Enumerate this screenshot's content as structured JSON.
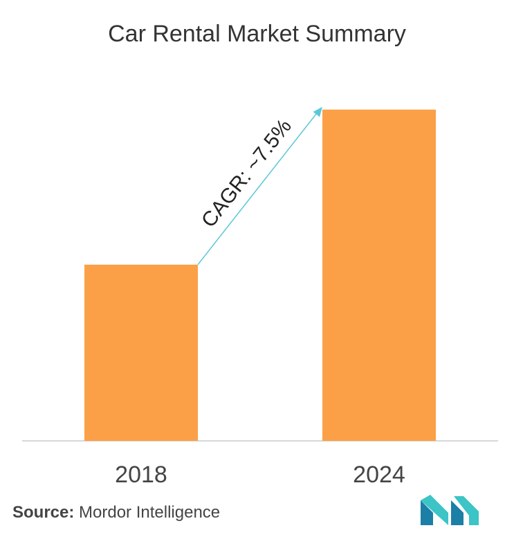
{
  "chart_data": {
    "type": "bar",
    "title": "Car Rental Market Summary",
    "categories": [
      "2018",
      "2024"
    ],
    "values": [
      1.0,
      1.88
    ],
    "annotation": "CAGR: ~7.5%",
    "ylim": [
      0,
      2.0
    ],
    "grid": false,
    "bar_color": "#FBA047",
    "arrow_color": "#5BC8D6"
  },
  "source": {
    "label": "Source:",
    "value": "Mordor Intelligence"
  },
  "logo": {
    "icon": "mordor-intelligence-logo-icon",
    "colors": [
      "#1B7FA6",
      "#3CC4C7"
    ]
  }
}
